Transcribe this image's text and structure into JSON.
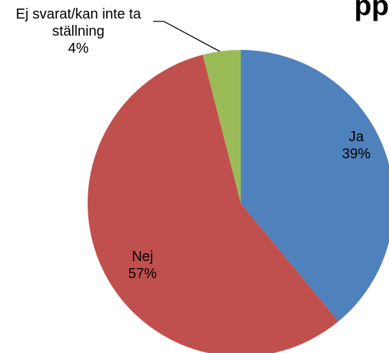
{
  "chart_data": {
    "type": "pie",
    "title": "pp",
    "categories": [
      "Ja",
      "Nej",
      "Ej svarat/kan inte ta ställning"
    ],
    "values": [
      39,
      57,
      4
    ],
    "value_labels": [
      "39%",
      "57%",
      "4%"
    ],
    "colors": [
      "#4f81bd",
      "#c0504d",
      "#9bbb59"
    ]
  }
}
